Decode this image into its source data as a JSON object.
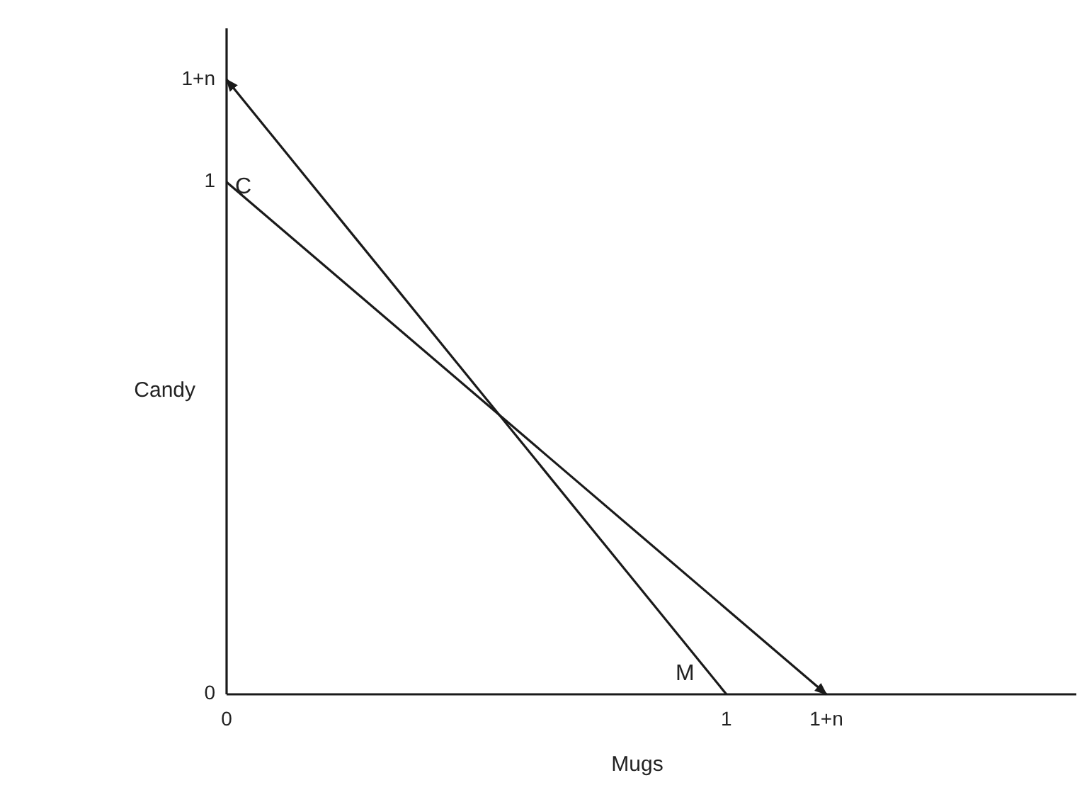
{
  "chart_data": {
    "type": "line",
    "xlabel": "Mugs",
    "ylabel": "Candy",
    "series": [
      {
        "color": "#1a1a1a",
        "x": [
          0,
          1.2
        ],
        "values": [
          1,
          0
        ]
      },
      {
        "color": "#1a1a1a",
        "x": [
          1,
          0
        ],
        "values": [
          0,
          1.2
        ]
      }
    ],
    "xlim": [
      0,
      1.7
    ],
    "ylim": [
      0,
      1.3
    ],
    "xticks": [
      0,
      1,
      {
        "value": 1.2,
        "label": "1+n"
      }
    ],
    "yticks": [
      0,
      1,
      {
        "value": 1.2,
        "label": "1+n"
      }
    ],
    "annotations": [
      {
        "text": "C",
        "x": 0,
        "y": 1
      },
      {
        "text": "M",
        "x": 1,
        "y": 0
      }
    ],
    "grid": false,
    "marker": "none",
    "line_style": "solid"
  }
}
